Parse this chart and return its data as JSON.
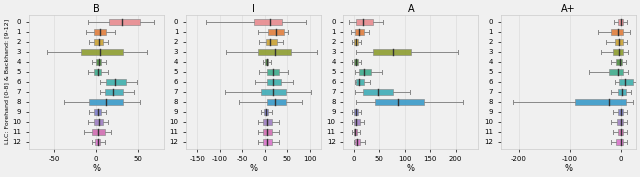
{
  "titles": [
    "B",
    "I",
    "A",
    "A+"
  ],
  "ylabel": "LLC: Forehand [0-8] & Backhand: [9-12]",
  "n_llcs": 13,
  "color_map": {
    "0": "#E8888C",
    "1": "#E07B39",
    "2": "#C9A030",
    "3": "#8B9B2B",
    "4": "#4A8A3C",
    "5": "#3BAA8A",
    "6": "#3AADAA",
    "7": "#3AAAB5",
    "8": "#3498C8",
    "9": "#7B7BC8",
    "10": "#9B7BC0",
    "11": "#D06AB0",
    "12": "#D870C8"
  },
  "panels": {
    "B": {
      "xlim": [
        -80,
        80
      ],
      "xticks": [
        -50,
        0,
        50
      ],
      "data": [
        [
          -10,
          15,
          30,
          52,
          68
        ],
        [
          -12,
          -3,
          5,
          12,
          22
        ],
        [
          -8,
          -2,
          3,
          8,
          14
        ],
        [
          -58,
          -18,
          5,
          32,
          60
        ],
        [
          -5,
          0,
          3,
          6,
          12
        ],
        [
          -10,
          -3,
          2,
          6,
          14
        ],
        [
          5,
          12,
          22,
          35,
          48
        ],
        [
          5,
          10,
          20,
          32,
          45
        ],
        [
          -38,
          -8,
          12,
          32,
          52
        ],
        [
          -8,
          -3,
          2,
          6,
          12
        ],
        [
          -10,
          -3,
          3,
          8,
          14
        ],
        [
          -14,
          -5,
          2,
          10,
          18
        ],
        [
          -5,
          -1,
          2,
          5,
          10
        ]
      ]
    },
    "I": {
      "xlim": [
        -175,
        125
      ],
      "xticks": [
        -150,
        -100,
        -50,
        0,
        50,
        100
      ],
      "data": [
        [
          -130,
          -25,
          12,
          38,
          92
        ],
        [
          -15,
          8,
          25,
          42,
          52
        ],
        [
          -12,
          2,
          12,
          28,
          40
        ],
        [
          -85,
          -15,
          22,
          58,
          115
        ],
        [
          -5,
          0,
          4,
          8,
          14
        ],
        [
          -12,
          5,
          18,
          32,
          52
        ],
        [
          -22,
          5,
          18,
          35,
          62
        ],
        [
          -88,
          -8,
          18,
          48,
          102
        ],
        [
          -58,
          5,
          22,
          48,
          82
        ],
        [
          -8,
          -2,
          3,
          8,
          15
        ],
        [
          -15,
          -4,
          5,
          16,
          32
        ],
        [
          -15,
          -4,
          5,
          16,
          32
        ],
        [
          -15,
          -4,
          5,
          16,
          32
        ]
      ]
    },
    "A": {
      "xlim": [
        -20,
        245
      ],
      "xticks": [
        0,
        50,
        100,
        150,
        200
      ],
      "data": [
        [
          -8,
          5,
          18,
          38,
          58
        ],
        [
          -5,
          3,
          10,
          20,
          30
        ],
        [
          -2,
          1,
          4,
          8,
          14
        ],
        [
          5,
          38,
          78,
          112,
          205
        ],
        [
          -2,
          1,
          4,
          8,
          14
        ],
        [
          2,
          10,
          20,
          35,
          55
        ],
        [
          2,
          4,
          10,
          20,
          32
        ],
        [
          2,
          18,
          48,
          78,
          110
        ],
        [
          5,
          42,
          88,
          138,
          215
        ],
        [
          -2,
          1,
          4,
          8,
          14
        ],
        [
          -2,
          1,
          4,
          12,
          20
        ],
        [
          -2,
          0,
          3,
          6,
          12
        ],
        [
          0,
          2,
          6,
          12,
          22
        ]
      ]
    },
    "A+": {
      "xlim": [
        -235,
        30
      ],
      "xticks": [
        -200,
        -100,
        0
      ],
      "data": [
        [
          -12,
          -5,
          0,
          5,
          12
        ],
        [
          -45,
          -18,
          -5,
          5,
          18
        ],
        [
          -28,
          -10,
          -3,
          4,
          12
        ],
        [
          -38,
          -15,
          -3,
          5,
          15
        ],
        [
          -18,
          -8,
          -2,
          3,
          10
        ],
        [
          -62,
          -22,
          -5,
          5,
          15
        ],
        [
          -10,
          -3,
          8,
          25,
          42
        ],
        [
          -18,
          -5,
          2,
          10,
          20
        ],
        [
          -210,
          -90,
          -22,
          10,
          25
        ],
        [
          -15,
          -5,
          0,
          5,
          12
        ],
        [
          -18,
          -6,
          0,
          5,
          12
        ],
        [
          -15,
          -5,
          0,
          5,
          12
        ],
        [
          -18,
          -8,
          0,
          5,
          12
        ]
      ]
    }
  },
  "xlabel": "%",
  "background_color": "#f0f0f0",
  "grid_color": "#dcdcdc"
}
